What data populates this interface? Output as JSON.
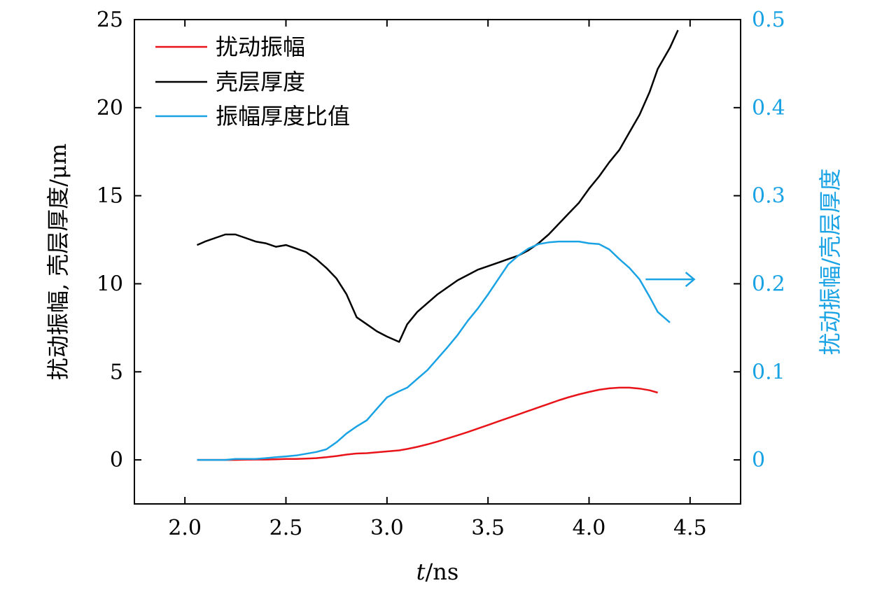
{
  "chart_data": {
    "type": "line",
    "x": [
      2.06,
      2.1,
      2.15,
      2.2,
      2.25,
      2.3,
      2.35,
      2.4,
      2.45,
      2.5,
      2.55,
      2.6,
      2.65,
      2.7,
      2.75,
      2.8,
      2.85,
      2.9,
      2.95,
      3.0,
      3.06,
      3.1,
      3.15,
      3.2,
      3.25,
      3.3,
      3.35,
      3.4,
      3.45,
      3.5,
      3.55,
      3.6,
      3.65,
      3.7,
      3.75,
      3.8,
      3.85,
      3.9,
      3.95,
      4.0,
      4.05,
      4.1,
      4.15,
      4.2,
      4.25,
      4.3,
      4.34,
      4.4,
      4.44
    ],
    "series": [
      {
        "name": "扰动振幅",
        "axis": "left",
        "color": "#e8141a",
        "values": [
          0.0,
          0.0,
          0.0,
          0.0,
          0.0,
          0.01,
          0.02,
          0.02,
          0.03,
          0.05,
          0.05,
          0.07,
          0.1,
          0.15,
          0.22,
          0.3,
          0.36,
          0.38,
          0.43,
          0.48,
          0.54,
          0.62,
          0.74,
          0.88,
          1.04,
          1.22,
          1.4,
          1.58,
          1.78,
          1.98,
          2.18,
          2.38,
          2.58,
          2.78,
          2.98,
          3.18,
          3.38,
          3.56,
          3.72,
          3.86,
          3.98,
          4.06,
          4.1,
          4.1,
          4.05,
          3.95,
          3.82,
          null,
          null
        ]
      },
      {
        "name": "壳层厚度",
        "axis": "left",
        "color": "#000000",
        "values": [
          12.2,
          12.4,
          12.6,
          12.8,
          12.8,
          12.6,
          12.4,
          12.3,
          12.1,
          12.2,
          12.0,
          11.8,
          11.4,
          10.9,
          10.3,
          9.4,
          8.1,
          7.7,
          7.3,
          7.0,
          6.7,
          7.7,
          8.4,
          8.9,
          9.4,
          9.8,
          10.2,
          10.5,
          10.8,
          11.0,
          11.2,
          11.4,
          11.6,
          11.9,
          12.3,
          12.8,
          13.4,
          14.0,
          14.6,
          15.4,
          16.1,
          16.9,
          17.6,
          18.6,
          19.6,
          20.9,
          22.2,
          23.4,
          24.4
        ]
      },
      {
        "name": "振幅厚度比值",
        "axis": "right",
        "color": "#1aa3e4",
        "values": [
          0.0,
          0.0,
          0.0,
          0.0,
          0.001,
          0.001,
          0.001,
          0.002,
          0.003,
          0.004,
          0.005,
          0.007,
          0.009,
          0.012,
          0.02,
          0.03,
          0.038,
          0.045,
          0.058,
          0.071,
          0.078,
          0.082,
          0.092,
          0.102,
          0.115,
          0.128,
          0.142,
          0.158,
          0.172,
          0.188,
          0.205,
          0.222,
          0.232,
          0.24,
          0.245,
          0.247,
          0.248,
          0.248,
          0.248,
          0.246,
          0.245,
          0.239,
          0.228,
          0.218,
          0.205,
          0.185,
          0.168,
          0.156,
          null
        ]
      }
    ],
    "xlabel_var": "t",
    "xlabel_unit": "/ns",
    "ylabel": "扰动振幅, 壳层厚度/μm",
    "ylabel_right": "扰动振幅/壳层厚度",
    "xlim": [
      1.75,
      4.75
    ],
    "ylim": [
      -2.5,
      25
    ],
    "ylim_right": [
      -0.05,
      0.5
    ],
    "xticks": [
      2.0,
      2.5,
      3.0,
      3.5,
      4.0,
      4.5
    ],
    "xtick_labels": [
      "2.0",
      "2.5",
      "3.0",
      "3.5",
      "4.0",
      "4.5"
    ],
    "yticks": [
      0,
      5,
      10,
      15,
      20,
      25
    ],
    "ytick_labels": [
      "0",
      "5",
      "10",
      "15",
      "20",
      "25"
    ],
    "yticks_right": [
      0,
      0.1,
      0.2,
      0.3,
      0.4,
      0.5
    ],
    "ytick_labels_right": [
      "0",
      "0.1",
      "0.2",
      "0.3",
      "0.4",
      "0.5"
    ],
    "legend_position": "top-left",
    "annotation_arrow": {
      "from_x": 4.28,
      "to_x": 4.52,
      "y_right": 0.205,
      "text": "→"
    },
    "grid": false,
    "right_axis_color": "#1aa3e4"
  }
}
